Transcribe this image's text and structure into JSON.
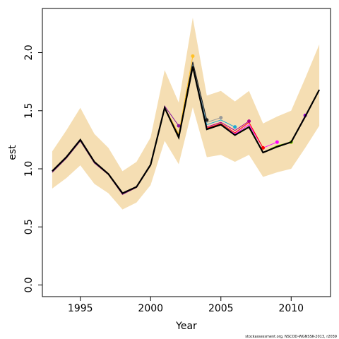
{
  "chart_data": {
    "type": "line",
    "x_label": "Year",
    "y_label": "est",
    "footnote": "stockassessment.org, NSCOD-WGNSSK-2013, r2039",
    "x": [
      1993,
      1994,
      1995,
      1996,
      1997,
      1998,
      1999,
      2000,
      2001,
      2002,
      2003,
      2004,
      2005,
      2006,
      2007,
      2008,
      2009,
      2010,
      2011,
      2012
    ],
    "xlim": [
      1992.3,
      2012.8
    ],
    "xticks": [
      1995,
      2000,
      2005,
      2010
    ],
    "ylim": [
      -0.1,
      2.38
    ],
    "yticks": [
      {
        "value": 0,
        "label": "0.0"
      },
      {
        "value": 0.5,
        "label": "0.5"
      },
      {
        "value": 1,
        "label": "1.0"
      },
      {
        "value": 1.5,
        "label": "1.5"
      },
      {
        "value": 2,
        "label": "2.0"
      }
    ],
    "band_color": "#f5deb3",
    "band_upper": [
      1.15,
      1.33,
      1.525,
      1.3,
      1.18,
      0.98,
      1.06,
      1.27,
      1.85,
      1.57,
      2.3,
      1.63,
      1.67,
      1.58,
      1.67,
      1.39,
      1.45,
      1.5,
      1.78,
      2.07
    ],
    "band_lower": [
      0.83,
      0.92,
      1.03,
      0.87,
      0.79,
      0.65,
      0.71,
      0.86,
      1.24,
      1.04,
      1.53,
      1.1,
      1.12,
      1.06,
      1.12,
      0.93,
      0.97,
      1.0,
      1.18,
      1.37
    ],
    "main": {
      "color": "#000000",
      "values": [
        0.98,
        1.1,
        1.25,
        1.06,
        0.955,
        0.79,
        0.845,
        1.035,
        1.525,
        1.27,
        1.88,
        1.34,
        1.38,
        1.29,
        1.36,
        1.14,
        1.19,
        1.23,
        1.45,
        1.68
      ]
    },
    "series": [
      {
        "color": "#9400d3",
        "values": [
          0.98,
          1.1,
          1.25,
          1.06,
          0.955,
          0.79,
          0.845,
          1.035,
          1.525,
          1.27,
          1.88,
          1.34,
          1.38,
          1.29,
          1.36,
          1.14,
          1.19,
          1.23,
          1.46,
          null
        ]
      },
      {
        "color": "#7fd400",
        "values": [
          0.98,
          1.1,
          1.25,
          1.06,
          0.955,
          0.79,
          0.845,
          1.035,
          1.525,
          1.27,
          1.88,
          1.34,
          1.38,
          1.29,
          1.36,
          1.14,
          1.2,
          1.23,
          null,
          null
        ]
      },
      {
        "color": "#ff00ff",
        "values": [
          0.98,
          1.1,
          1.25,
          1.05,
          0.95,
          0.78,
          0.84,
          1.03,
          1.52,
          1.27,
          1.88,
          1.35,
          1.38,
          1.3,
          1.38,
          1.18,
          1.23,
          null,
          null,
          null
        ]
      },
      {
        "color": "#ff0000",
        "values": [
          0.98,
          1.1,
          1.25,
          1.05,
          0.95,
          0.78,
          0.84,
          1.03,
          1.52,
          1.27,
          1.88,
          1.35,
          1.39,
          1.31,
          1.4,
          1.18,
          null,
          null,
          null,
          null
        ]
      },
      {
        "color": "#b0008a",
        "values": [
          0.97,
          1.09,
          1.24,
          1.05,
          0.95,
          0.78,
          0.84,
          1.03,
          1.53,
          1.28,
          1.89,
          1.36,
          1.4,
          1.33,
          1.41,
          null,
          null,
          null,
          null,
          null
        ]
      },
      {
        "color": "#1ea7d6",
        "values": [
          0.97,
          1.09,
          1.24,
          1.05,
          0.95,
          0.78,
          0.84,
          1.03,
          1.53,
          1.28,
          1.9,
          1.38,
          1.42,
          1.36,
          null,
          null,
          null,
          null,
          null,
          null
        ]
      },
      {
        "color": "#999999",
        "values": [
          0.97,
          1.09,
          1.24,
          1.05,
          0.95,
          0.78,
          0.84,
          1.03,
          1.53,
          1.28,
          1.91,
          1.4,
          1.44,
          null,
          null,
          null,
          null,
          null,
          null,
          null
        ]
      },
      {
        "color": "#222222",
        "values": [
          0.97,
          1.09,
          1.24,
          1.05,
          0.95,
          0.78,
          0.84,
          1.03,
          1.53,
          1.29,
          1.92,
          1.42,
          null,
          null,
          null,
          null,
          null,
          null,
          null,
          null
        ]
      },
      {
        "color": "#ffc125",
        "values": [
          0.97,
          1.09,
          1.24,
          1.05,
          0.95,
          0.78,
          0.84,
          1.03,
          1.53,
          1.3,
          1.97,
          null,
          null,
          null,
          null,
          null,
          null,
          null,
          null,
          null
        ]
      },
      {
        "color": "#8b1a9a",
        "values": [
          0.97,
          1.09,
          1.24,
          1.05,
          0.95,
          0.78,
          0.84,
          1.03,
          1.54,
          1.37,
          null,
          null,
          null,
          null,
          null,
          null,
          null,
          null,
          null,
          null
        ]
      }
    ]
  }
}
